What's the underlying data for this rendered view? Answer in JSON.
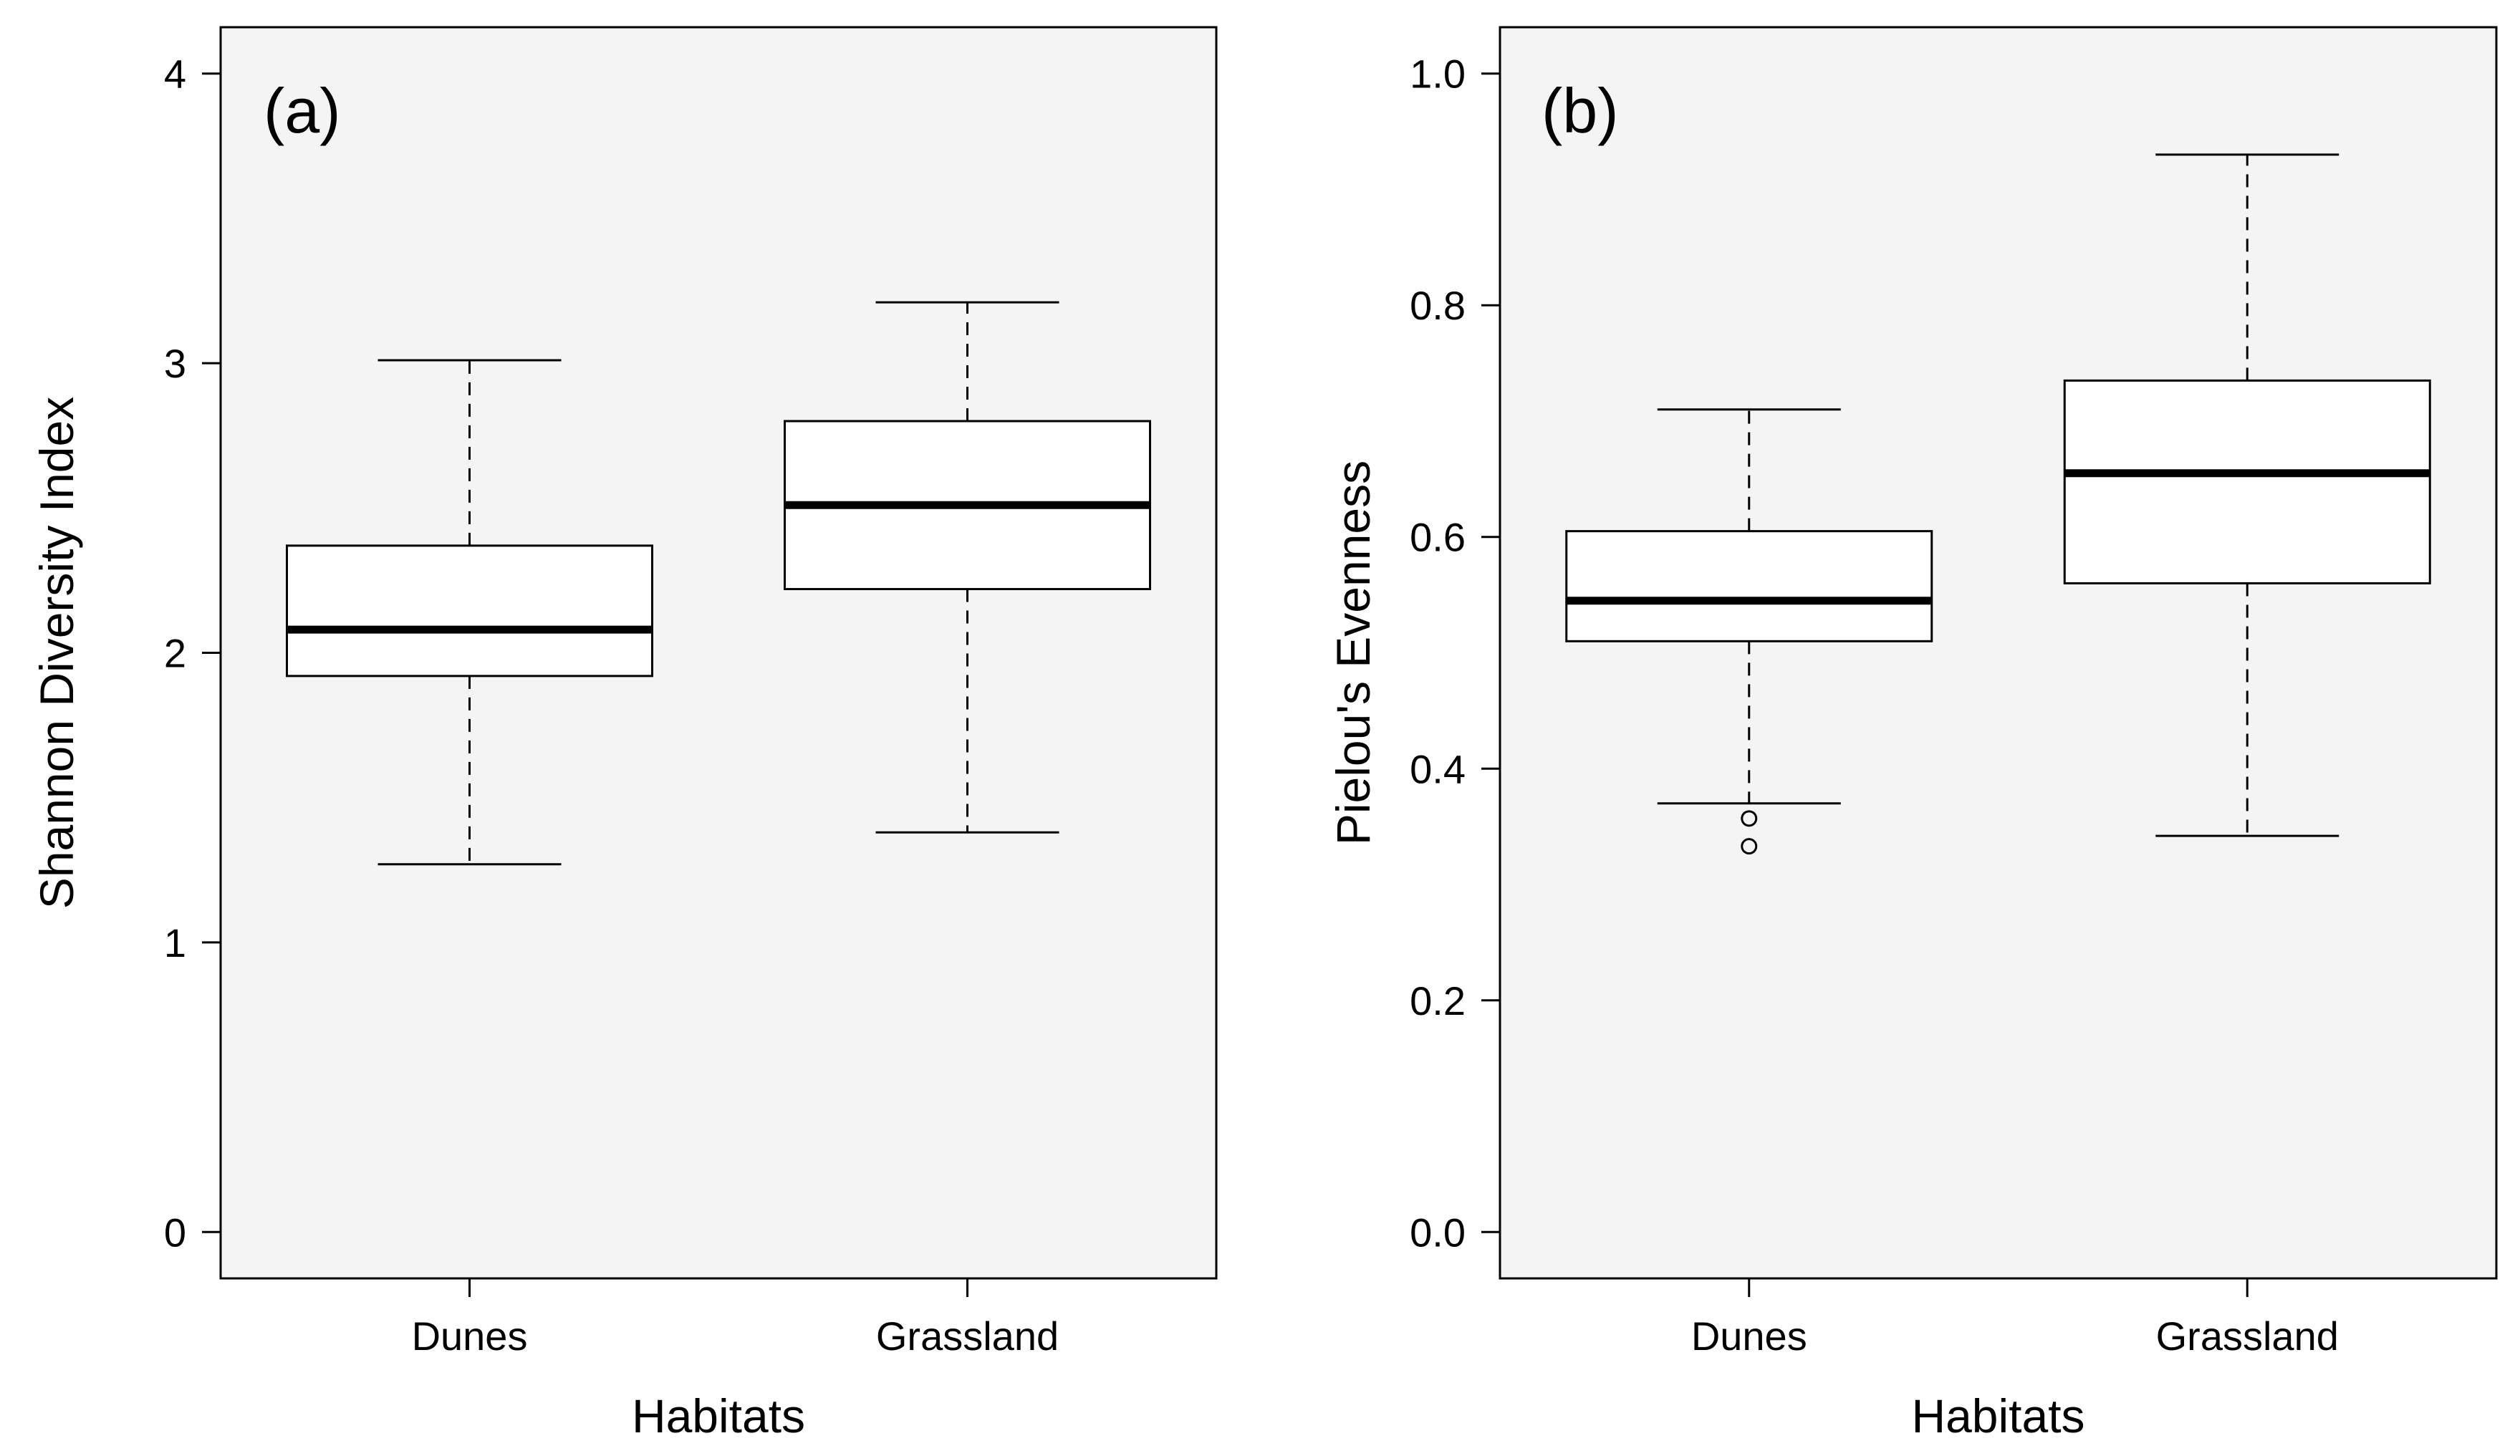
{
  "chart_data": [
    {
      "type": "box",
      "panel_label": "(a)",
      "xlabel": "Habitats",
      "ylabel": "Shannon Diversity Index",
      "ylim": [
        -0.16,
        4.16
      ],
      "yticks": [
        0,
        1,
        2,
        3,
        4
      ],
      "ytick_labels": [
        "0",
        "1",
        "2",
        "3",
        "4"
      ],
      "categories": [
        "Dunes",
        "Grassland"
      ],
      "boxes": [
        {
          "category": "Dunes",
          "whisker_low": 1.27,
          "q1": 1.92,
          "median": 2.08,
          "q3": 2.37,
          "whisker_high": 3.01,
          "outliers": []
        },
        {
          "category": "Grassland",
          "whisker_low": 1.38,
          "q1": 2.22,
          "median": 2.51,
          "q3": 2.8,
          "whisker_high": 3.21,
          "outliers": []
        }
      ],
      "background": "#f4f4f4"
    },
    {
      "type": "box",
      "panel_label": "(b)",
      "xlabel": "Habitats",
      "ylabel": "Pielou's Evenness",
      "ylim": [
        -0.04,
        1.04
      ],
      "yticks": [
        0,
        0.2,
        0.4,
        0.6,
        0.8,
        1
      ],
      "ytick_labels": [
        "0.0",
        "0.2",
        "0.4",
        "0.6",
        "0.8",
        "1.0"
      ],
      "categories": [
        "Dunes",
        "Grassland"
      ],
      "boxes": [
        {
          "category": "Dunes",
          "whisker_low": 0.37,
          "q1": 0.51,
          "median": 0.545,
          "q3": 0.605,
          "whisker_high": 0.71,
          "outliers": [
            0.357,
            0.333
          ]
        },
        {
          "category": "Grassland",
          "whisker_low": 0.342,
          "q1": 0.56,
          "median": 0.655,
          "q3": 0.735,
          "whisker_high": 0.93,
          "outliers": []
        }
      ],
      "background": "#f4f4f4"
    }
  ]
}
